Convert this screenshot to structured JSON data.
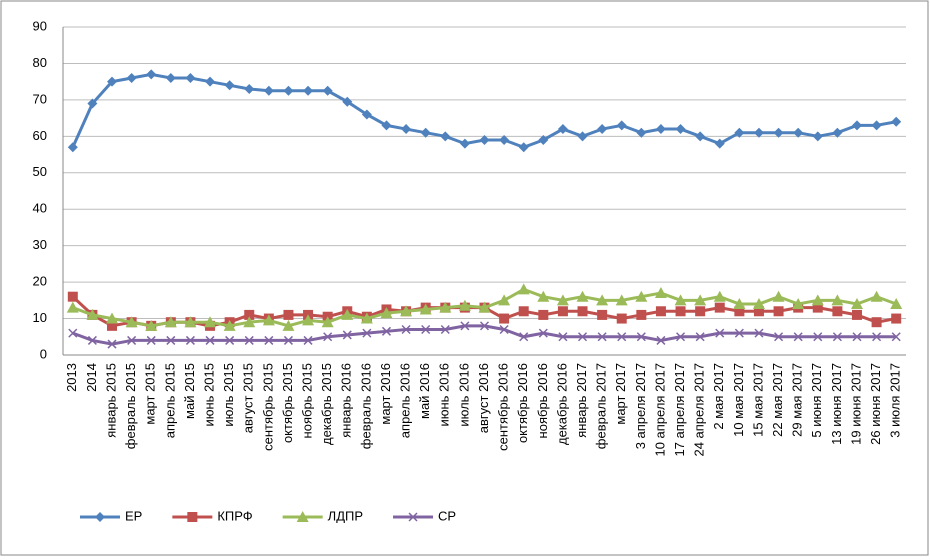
{
  "chart_data": {
    "type": "line",
    "categories": [
      "2013",
      "2014",
      "январь 2015",
      "февраль 2015",
      "март 2015",
      "апрель 2015",
      "май 2015",
      "июнь 2015",
      "июль 2015",
      "август 2015",
      "сентябрь 2015",
      "октябрь 2015",
      "ноябрь 2015",
      "декабрь 2015",
      "январь 2016",
      "февраль 2016",
      "март 2016",
      "апрель 2016",
      "май 2016",
      "июнь 2016",
      "июль 2016",
      "август 2016",
      "сентябрь 2016",
      "октябрь 2016",
      "ноябрь 2016",
      "декабрь 2016",
      "январь 2017",
      "февраль 2017",
      "март 2017",
      "3 апреля 2017",
      "10 апреля 2017",
      "17 апреля 2017",
      "24 апреля 2017",
      "2 мая 2017",
      "10 мая 2017",
      "15 мая 2017",
      "22 мая 2017",
      "29 мая 2017",
      "5 июня 2017",
      "13 июня 2017",
      "19 июня 2017",
      "26 июня 2017",
      "3 июля 2017"
    ],
    "series": [
      {
        "name": "ЕР",
        "color": "#4f81bd",
        "marker": "diamond",
        "values": [
          57,
          69,
          75,
          76,
          77,
          76,
          76,
          75,
          74,
          73,
          72.5,
          72.5,
          72.5,
          72.5,
          69.5,
          66,
          63,
          62,
          61,
          60,
          58,
          59,
          59,
          57,
          59,
          62,
          60,
          62,
          63,
          61,
          62,
          62,
          60,
          58,
          61,
          61,
          61,
          61,
          60,
          61,
          63,
          63,
          64
        ]
      },
      {
        "name": "КПРФ",
        "color": "#c0504d",
        "marker": "square",
        "values": [
          16,
          11,
          8,
          9,
          8,
          9,
          9,
          8,
          9,
          11,
          10,
          11,
          11,
          10.5,
          12,
          10.5,
          12.5,
          12,
          13,
          13,
          13,
          13,
          10,
          12,
          11,
          12,
          12,
          11,
          10,
          11,
          12,
          12,
          12,
          13,
          12,
          12,
          12,
          13,
          13,
          12,
          11,
          9,
          10
        ]
      },
      {
        "name": "ЛДПР",
        "color": "#9bbb59",
        "marker": "triangle",
        "values": [
          13,
          11,
          10,
          9,
          8,
          9,
          9,
          9,
          8,
          9,
          9.5,
          8,
          9.5,
          9,
          11,
          10,
          11.5,
          12,
          12.5,
          13,
          13.5,
          13,
          15,
          18,
          16,
          15,
          16,
          15,
          15,
          16,
          17,
          15,
          15,
          16,
          14,
          14,
          16,
          14,
          15,
          15,
          14,
          16,
          14
        ]
      },
      {
        "name": "СР",
        "color": "#8064a2",
        "marker": "x",
        "values": [
          6,
          4,
          3,
          4,
          4,
          4,
          4,
          4,
          4,
          4,
          4,
          4,
          4,
          5,
          5.5,
          6,
          6.5,
          7,
          7,
          7,
          8,
          8,
          7,
          5,
          6,
          5,
          5,
          5,
          5,
          5,
          4,
          5,
          5,
          6,
          6,
          6,
          5,
          5,
          5,
          5,
          5,
          5,
          5
        ]
      }
    ],
    "ylim": [
      0,
      90
    ],
    "yticks": [
      0,
      10,
      20,
      30,
      40,
      50,
      60,
      70,
      80,
      90
    ],
    "grid": true,
    "legend": "bottom"
  }
}
